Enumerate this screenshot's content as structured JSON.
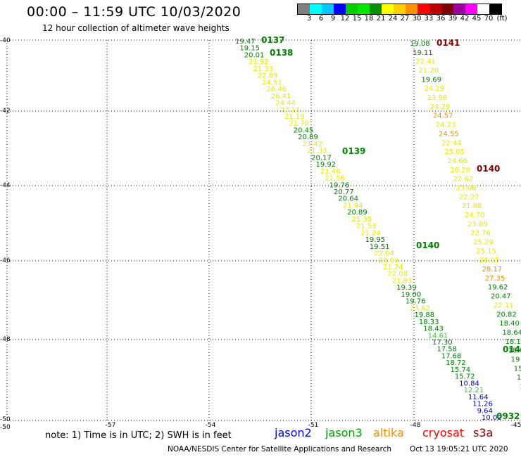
{
  "title": "00:00 – 11:59 UTC 10/03/2020",
  "subtitle": "12 hour collection of altimeter wave heights",
  "colorbar": {
    "unit": "(ft)",
    "colors": [
      "#808080",
      "#00ffff",
      "#00c8ff",
      "#0000ff",
      "#00d000",
      "#00e800",
      "#009000",
      "#ffff00",
      "#ffd000",
      "#ff9000",
      "#ff0000",
      "#c00000",
      "#800000",
      "#a000a0",
      "#ff00ff",
      "#ffffff",
      "#000000"
    ],
    "labels": [
      "3",
      "6",
      "9",
      "12",
      "15",
      "18",
      "21",
      "24",
      "27",
      "30",
      "33",
      "36",
      "39",
      "42",
      "45",
      "70"
    ]
  },
  "map": {
    "lat_ticks": [
      "-40",
      "-42",
      "-44",
      "-46",
      "-48",
      "-50"
    ],
    "lat_corner": "-50",
    "lon_ticks": [
      "-57",
      "-54",
      "-51",
      "-48",
      "-45"
    ]
  },
  "colors": {
    "green": "#008000",
    "light_green": "#33cc33",
    "yellow": "#e8e800",
    "orange": "#e89000",
    "dark_red": "#800000",
    "blue": "#0000cc",
    "jason2": "#0000ff",
    "jason3": "#00a000",
    "altika": "#ff8c00",
    "cryosat": "#ff0000",
    "s3a": "#800000"
  },
  "passes": [
    {
      "label": "0137",
      "color": "green"
    },
    {
      "label": "0138",
      "color": "green"
    },
    {
      "label": "0139",
      "color": "green"
    },
    {
      "label": "0140",
      "color": "green"
    },
    {
      "label": "0141",
      "color": "dark_red"
    },
    {
      "label": "0140",
      "color": "dark_red"
    },
    {
      "label": "014",
      "color": "green"
    },
    {
      "label": "0932",
      "color": "green"
    }
  ],
  "track_a": [
    {
      "v": "19.47",
      "c": "green"
    },
    {
      "v": "19.15",
      "c": "green"
    },
    {
      "v": "20.01",
      "c": "green"
    },
    {
      "v": "21.92",
      "c": "yellow"
    },
    {
      "v": "21.33",
      "c": "yellow"
    },
    {
      "v": "22.89",
      "c": "yellow"
    },
    {
      "v": "24.51",
      "c": "yellow"
    },
    {
      "v": "26.46",
      "c": "yellow"
    },
    {
      "v": "26.41",
      "c": "yellow"
    },
    {
      "v": "24.44",
      "c": "yellow"
    },
    {
      "v": "22.11",
      "c": "yellow"
    },
    {
      "v": "21.19",
      "c": "yellow"
    },
    {
      "v": "21.70",
      "c": "yellow"
    },
    {
      "v": "20.45",
      "c": "green"
    },
    {
      "v": "20.89",
      "c": "green"
    },
    {
      "v": "21.42",
      "c": "yellow"
    },
    {
      "v": "21.33",
      "c": "yellow"
    },
    {
      "v": "20.17",
      "c": "green"
    },
    {
      "v": "19.92",
      "c": "green"
    },
    {
      "v": "21.46",
      "c": "yellow"
    },
    {
      "v": "21.56",
      "c": "yellow"
    },
    {
      "v": "19.76",
      "c": "green"
    },
    {
      "v": "20.77",
      "c": "green"
    },
    {
      "v": "20.64",
      "c": "green"
    },
    {
      "v": "21.94",
      "c": "yellow"
    },
    {
      "v": "20.89",
      "c": "green"
    },
    {
      "v": "21.35",
      "c": "yellow"
    },
    {
      "v": "21.53",
      "c": "yellow"
    },
    {
      "v": "21.24",
      "c": "yellow"
    },
    {
      "v": "19.95",
      "c": "green"
    },
    {
      "v": "19.51",
      "c": "green"
    },
    {
      "v": "22.04",
      "c": "yellow"
    },
    {
      "v": "23.03",
      "c": "yellow"
    },
    {
      "v": "21.74",
      "c": "yellow"
    },
    {
      "v": "22.08",
      "c": "yellow"
    },
    {
      "v": "21.93",
      "c": "yellow"
    },
    {
      "v": "19.39",
      "c": "green"
    },
    {
      "v": "19.00",
      "c": "green"
    },
    {
      "v": "19.76",
      "c": "green"
    },
    {
      "v": "23.62",
      "c": "yellow"
    },
    {
      "v": "19.88",
      "c": "green"
    },
    {
      "v": "18.33",
      "c": "green"
    },
    {
      "v": "18.43",
      "c": "green"
    },
    {
      "v": "14.61",
      "c": "light_green"
    },
    {
      "v": "17.30",
      "c": "green"
    },
    {
      "v": "17.58",
      "c": "green"
    },
    {
      "v": "17.68",
      "c": "green"
    },
    {
      "v": "18.72",
      "c": "green"
    },
    {
      "v": "15.74",
      "c": "green"
    },
    {
      "v": "15.72",
      "c": "green"
    },
    {
      "v": "10.84",
      "c": "blue"
    },
    {
      "v": "12.21",
      "c": "light_green"
    },
    {
      "v": "11.64",
      "c": "blue"
    },
    {
      "v": "11.26",
      "c": "blue"
    },
    {
      "v": "9.64",
      "c": "blue"
    },
    {
      "v": "10.02",
      "c": "blue"
    }
  ],
  "track_b": [
    {
      "v": "19.08",
      "c": "green"
    },
    {
      "v": "19.11",
      "c": "green"
    },
    {
      "v": "22.41",
      "c": "yellow"
    },
    {
      "v": "21.20",
      "c": "yellow"
    },
    {
      "v": "19.69",
      "c": "green"
    },
    {
      "v": "24.29",
      "c": "yellow"
    },
    {
      "v": "23.98",
      "c": "yellow"
    },
    {
      "v": "24.29",
      "c": "yellow"
    },
    {
      "v": "24.57",
      "c": "orange"
    },
    {
      "v": "24.23",
      "c": "yellow"
    },
    {
      "v": "24.55",
      "c": "orange"
    },
    {
      "v": "22.44",
      "c": "yellow"
    },
    {
      "v": "25.05",
      "c": "yellow"
    },
    {
      "v": "24.66",
      "c": "yellow"
    },
    {
      "v": "26.20",
      "c": "yellow"
    },
    {
      "v": "22.62",
      "c": "yellow"
    },
    {
      "v": "23.06",
      "c": "yellow"
    },
    {
      "v": "22.27",
      "c": "yellow"
    },
    {
      "v": "21.88",
      "c": "yellow"
    },
    {
      "v": "24.70",
      "c": "yellow"
    },
    {
      "v": "23.89",
      "c": "yellow"
    },
    {
      "v": "22.76",
      "c": "yellow"
    },
    {
      "v": "25.29",
      "c": "yellow"
    },
    {
      "v": "25.15",
      "c": "yellow"
    },
    {
      "v": "26.05",
      "c": "yellow"
    },
    {
      "v": "28.17",
      "c": "orange"
    },
    {
      "v": "27.35",
      "c": "orange"
    },
    {
      "v": "19.62",
      "c": "green"
    },
    {
      "v": "20.47",
      "c": "green"
    },
    {
      "v": "22.11",
      "c": "yellow"
    },
    {
      "v": "20.82",
      "c": "green"
    },
    {
      "v": "18.40",
      "c": "green"
    },
    {
      "v": "18.64",
      "c": "green"
    },
    {
      "v": "18.1",
      "c": "green"
    },
    {
      "v": "18.6",
      "c": "green"
    },
    {
      "v": "19",
      "c": "green"
    },
    {
      "v": "15",
      "c": "green"
    },
    {
      "v": "15",
      "c": "green"
    },
    {
      "v": "12",
      "c": "light_green"
    }
  ],
  "note": "note:  1) Time is in UTC;  2) SWH is in feet",
  "legend": [
    {
      "name": "jason2",
      "color": "jason2"
    },
    {
      "name": "jason3",
      "color": "jason3"
    },
    {
      "name": "altika",
      "color": "altika"
    },
    {
      "name": "cryosat",
      "color": "cryosat"
    },
    {
      "name": "s3a",
      "color": "s3a"
    }
  ],
  "footer": "NOAA/NESDIS Center for Satellite Applications and Research",
  "footer_time": "Oct 13 19:05:21 UTC 2020"
}
